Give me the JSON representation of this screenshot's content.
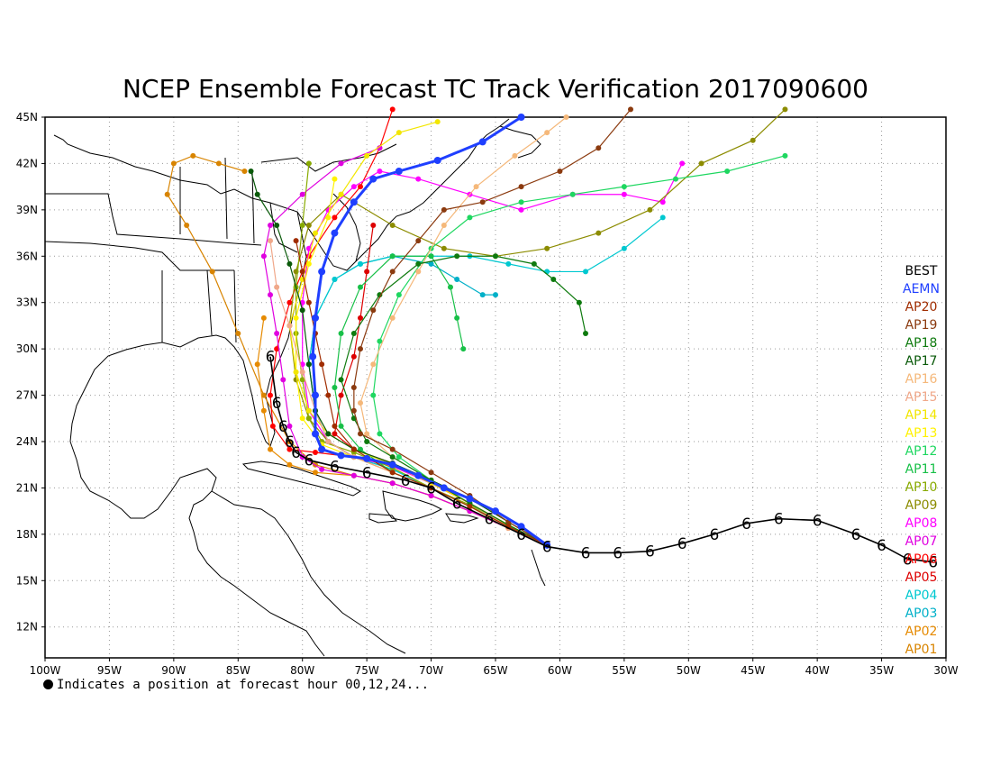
{
  "title": "NCEP Ensemble Forecast TC Track Verification 2017090600",
  "footnote": "Indicates a position at forecast hour 00,12,24...",
  "map": {
    "lon_range": [
      -100,
      -30
    ],
    "lat_range": [
      10,
      45
    ],
    "x_ticks": [
      "100W",
      "95W",
      "90W",
      "85W",
      "80W",
      "75W",
      "70W",
      "65W",
      "60W",
      "55W",
      "50W",
      "45W",
      "40W",
      "35W",
      "30W"
    ],
    "y_ticks": [
      "12N",
      "15N",
      "18N",
      "21N",
      "24N",
      "27N",
      "30N",
      "33N",
      "36N",
      "39N",
      "42N",
      "45N"
    ],
    "grid": true
  },
  "legend": [
    {
      "label": "BEST",
      "color": "#000000"
    },
    {
      "label": "AEMN",
      "color": "#1f3fff"
    },
    {
      "label": "AP20",
      "color": "#a02c00"
    },
    {
      "label": "AP19",
      "color": "#8b3a0f"
    },
    {
      "label": "AP18",
      "color": "#0e7a0e"
    },
    {
      "label": "AP17",
      "color": "#0a5a0a"
    },
    {
      "label": "AP16",
      "color": "#f5b87a"
    },
    {
      "label": "AP15",
      "color": "#f0a88a"
    },
    {
      "label": "AP14",
      "color": "#f2e600"
    },
    {
      "label": "AP13",
      "color": "#fff200"
    },
    {
      "label": "AP12",
      "color": "#1ed760"
    },
    {
      "label": "AP11",
      "color": "#18c048"
    },
    {
      "label": "AP10",
      "color": "#88aa00"
    },
    {
      "label": "AP09",
      "color": "#8c8c00"
    },
    {
      "label": "AP08",
      "color": "#ff00ff"
    },
    {
      "label": "AP07",
      "color": "#e000e0"
    },
    {
      "label": "AP06",
      "color": "#ff0000"
    },
    {
      "label": "AP05",
      "color": "#dd0000"
    },
    {
      "label": "AP04",
      "color": "#00c8d0"
    },
    {
      "label": "AP03",
      "color": "#00b0c8"
    },
    {
      "label": "AP02",
      "color": "#e68a00"
    },
    {
      "label": "AP01",
      "color": "#d88400"
    }
  ],
  "chart_data": {
    "type": "scatter",
    "title": "NCEP Ensemble Forecast TC Track Verification 2017090600",
    "xlim": [
      -100,
      -30
    ],
    "ylim": [
      10,
      45
    ],
    "series": [
      {
        "name": "BEST",
        "color": "#000000",
        "x": [
          -31,
          -33,
          -35,
          -37,
          -40,
          -43,
          -45.5,
          -48,
          -50.5,
          -53,
          -55.5,
          -58,
          -61,
          -63,
          -65.5,
          -68,
          -70,
          -72,
          -75,
          -77.5,
          -79.5,
          -80.5,
          -81,
          -81.5,
          -82,
          -82.5
        ],
        "y": [
          16.2,
          16.4,
          17.3,
          18,
          18.9,
          19,
          18.7,
          18,
          17.4,
          16.9,
          16.8,
          16.8,
          17.2,
          18,
          19,
          20,
          21,
          21.5,
          22,
          22.4,
          22.8,
          23.3,
          24,
          25,
          26.5,
          29.5
        ]
      },
      {
        "name": "AEMN",
        "color": "#1f3fff",
        "x": [
          -61,
          -63,
          -65,
          -67,
          -69,
          -71,
          -73,
          -75,
          -77,
          -78.5,
          -79,
          -79,
          -79.2,
          -79,
          -78.5,
          -77.5,
          -76,
          -74.5,
          -72.5,
          -69.5,
          -66,
          -63
        ],
        "y": [
          17.3,
          18.5,
          19.5,
          20.3,
          21,
          21.8,
          22.5,
          22.9,
          23.1,
          23.5,
          24.5,
          27,
          29.5,
          32,
          35,
          37.5,
          39.5,
          41,
          41.5,
          42.2,
          43.4,
          45
        ]
      },
      {
        "name": "AP20",
        "color": "#a02c00",
        "x": [
          -61,
          -64,
          -67,
          -70,
          -73,
          -76,
          -77.5,
          -78,
          -78.5,
          -79,
          -79.5,
          -80,
          -80.5
        ],
        "y": [
          17.3,
          18.5,
          19.8,
          21,
          22,
          23.5,
          25,
          27,
          29,
          31,
          33,
          35,
          37
        ]
      },
      {
        "name": "AP19",
        "color": "#8b3a0f",
        "x": [
          -61,
          -64,
          -67,
          -70,
          -73,
          -75.5,
          -76,
          -76,
          -75.5,
          -74.5,
          -73,
          -71,
          -69,
          -66,
          -63,
          -60,
          -57,
          -54.5
        ],
        "y": [
          17.3,
          18.8,
          20.5,
          22,
          23.5,
          24.5,
          26,
          27.5,
          30,
          32.5,
          35,
          37,
          39,
          39.5,
          40.5,
          41.5,
          43,
          45.5
        ]
      },
      {
        "name": "AP18",
        "color": "#0e7a0e",
        "x": [
          -61,
          -64,
          -67,
          -70,
          -73,
          -75,
          -76,
          -77,
          -76,
          -74,
          -71,
          -68,
          -65,
          -62,
          -60.5,
          -58.5,
          -58
        ],
        "y": [
          17.3,
          18.6,
          20,
          21.5,
          23,
          24,
          25.5,
          28,
          31,
          33.5,
          35.5,
          36,
          36,
          35.5,
          34.5,
          33,
          31
        ]
      },
      {
        "name": "AP17",
        "color": "#0a5a0a",
        "x": [
          -61,
          -64,
          -67,
          -70,
          -73,
          -76,
          -78,
          -79,
          -79.5,
          -80,
          -81,
          -82,
          -83.5,
          -84
        ],
        "y": [
          17.3,
          18.8,
          20.3,
          21.5,
          22.6,
          23.5,
          24.5,
          26,
          29,
          32.5,
          35.5,
          38,
          40,
          41.5
        ]
      },
      {
        "name": "AP16",
        "color": "#f5b87a",
        "x": [
          -61,
          -64,
          -67,
          -70,
          -73,
          -75,
          -75.5,
          -74.5,
          -73,
          -71,
          -69,
          -66.5,
          -63.5,
          -61,
          -59.5
        ],
        "y": [
          17.3,
          18.5,
          20,
          21.5,
          23,
          24.5,
          26.5,
          29,
          32,
          35,
          38,
          40.5,
          42.5,
          44,
          45
        ]
      },
      {
        "name": "AP15",
        "color": "#f0a88a",
        "x": [
          -61,
          -64,
          -67,
          -70,
          -73,
          -76,
          -78,
          -79,
          -80,
          -81,
          -82,
          -82.5
        ],
        "y": [
          17.3,
          18.4,
          19.8,
          21,
          22,
          23,
          24,
          26,
          28.5,
          31.5,
          34,
          37
        ]
      },
      {
        "name": "AP14",
        "color": "#f2e600",
        "x": [
          -61,
          -64,
          -67,
          -70,
          -73,
          -76,
          -78,
          -79.5,
          -80.5,
          -81,
          -80,
          -79,
          -77,
          -75,
          -72.5,
          -69.5
        ],
        "y": [
          17.3,
          18.6,
          20,
          21.3,
          22.5,
          23.5,
          24.5,
          26,
          28.5,
          31.5,
          34.5,
          37.5,
          40,
          42.5,
          44,
          44.7
        ]
      },
      {
        "name": "AP13",
        "color": "#fff200",
        "x": [
          -61,
          -64,
          -67,
          -70,
          -73,
          -76,
          -78.5,
          -80,
          -80.5,
          -80.5,
          -79.5,
          -78,
          -77.5
        ],
        "y": [
          17.3,
          18.4,
          19.8,
          21,
          22,
          23,
          23.8,
          25.5,
          28.5,
          32,
          35.5,
          38.5,
          41
        ]
      },
      {
        "name": "AP12",
        "color": "#1ed760",
        "x": [
          -61,
          -64,
          -67,
          -70,
          -72.5,
          -74,
          -74.5,
          -74,
          -72.5,
          -70,
          -67,
          -63,
          -59,
          -55,
          -51,
          -47,
          -42.5
        ],
        "y": [
          17.3,
          18.6,
          20,
          21.5,
          23,
          24.5,
          27,
          30.5,
          33.5,
          36.5,
          38.5,
          39.5,
          40,
          40.5,
          41,
          41.5,
          42.5
        ]
      },
      {
        "name": "AP11",
        "color": "#18c048",
        "x": [
          -61,
          -64,
          -67,
          -70,
          -73,
          -75.5,
          -77,
          -77.5,
          -77,
          -75.5,
          -73,
          -70,
          -68.5,
          -68,
          -67.5
        ],
        "y": [
          17.3,
          18.5,
          19.8,
          21,
          22,
          23.5,
          25,
          27.5,
          31,
          34,
          36,
          36,
          34,
          32,
          30
        ]
      },
      {
        "name": "AP10",
        "color": "#88aa00",
        "x": [
          -61,
          -64,
          -67,
          -70,
          -73,
          -76,
          -78.5,
          -79.5,
          -80,
          -80.5,
          -80.5,
          -80,
          -79.5
        ],
        "y": [
          17.3,
          18.6,
          19.9,
          21,
          22.3,
          23.3,
          24,
          25.5,
          28,
          31,
          34,
          38,
          42
        ]
      },
      {
        "name": "AP09",
        "color": "#8c8c00",
        "x": [
          -61,
          -64,
          -67,
          -70,
          -73,
          -76,
          -78,
          -79.5,
          -80.5,
          -81,
          -80.5,
          -79.5,
          -77,
          -73,
          -69,
          -65,
          -61,
          -57,
          -53,
          -49,
          -45,
          -42.5
        ],
        "y": [
          17.3,
          18.5,
          19.8,
          21,
          22,
          23,
          24,
          25.5,
          28,
          31.5,
          35,
          38,
          40,
          38,
          36.5,
          36,
          36.5,
          37.5,
          39,
          42,
          43.5,
          45.5
        ]
      },
      {
        "name": "AP08",
        "color": "#ff00ff",
        "x": [
          -61,
          -64,
          -67,
          -70,
          -73,
          -76,
          -78,
          -79.5,
          -80,
          -80,
          -79.5,
          -78,
          -76,
          -74,
          -71,
          -67,
          -63,
          -59,
          -55,
          -52,
          -50.5
        ],
        "y": [
          17.3,
          18.5,
          20,
          21.3,
          22.4,
          23,
          24,
          26,
          29,
          33,
          36.5,
          39,
          40.5,
          41.5,
          41,
          40,
          39,
          40,
          40,
          39.5,
          42
        ]
      },
      {
        "name": "AP07",
        "color": "#e000e0",
        "x": [
          -61,
          -64,
          -67,
          -70,
          -73,
          -76,
          -78.5,
          -80,
          -81,
          -81.5,
          -82,
          -82.5,
          -83,
          -82.5,
          -80,
          -77,
          -74
        ],
        "y": [
          17.3,
          18.4,
          19.5,
          20.5,
          21.3,
          21.8,
          22.2,
          23,
          25,
          28,
          31,
          33.5,
          36,
          38,
          40,
          42,
          43
        ]
      },
      {
        "name": "AP06",
        "color": "#ff0000",
        "x": [
          -61,
          -64,
          -67,
          -70,
          -73,
          -76,
          -79,
          -81,
          -82.3,
          -82.5,
          -82,
          -81,
          -79.5,
          -77.5,
          -75.5,
          -74,
          -73
        ],
        "y": [
          17.3,
          18.6,
          20,
          21.3,
          22.4,
          23,
          23.3,
          23.5,
          25,
          27,
          30,
          33,
          36,
          38.5,
          40.5,
          43,
          45.5
        ]
      },
      {
        "name": "AP05",
        "color": "#dd0000",
        "x": [
          -61,
          -64,
          -67,
          -70,
          -73,
          -76,
          -77.5,
          -77,
          -76,
          -75.5,
          -75,
          -74.5
        ],
        "y": [
          17.3,
          18.6,
          20,
          21.4,
          22.6,
          23.5,
          24.5,
          27,
          29.5,
          32,
          35,
          38
        ]
      },
      {
        "name": "AP04",
        "color": "#00c8d0",
        "x": [
          -61,
          -64,
          -67,
          -70,
          -73,
          -76,
          -78,
          -79,
          -79.5,
          -79,
          -77.5,
          -75.5,
          -73,
          -70,
          -67,
          -64,
          -61,
          -58,
          -55,
          -52
        ],
        "y": [
          17.3,
          18.5,
          19.8,
          21,
          22.2,
          23,
          24,
          26,
          29,
          32,
          34.5,
          35.5,
          36,
          36,
          36,
          35.5,
          35,
          35,
          36.5,
          38.5
        ]
      },
      {
        "name": "AP03",
        "color": "#00b0c8",
        "x": [
          -61,
          -64,
          -67,
          -70,
          -73,
          -76,
          -78,
          -79,
          -79.5,
          -79,
          -77.5,
          -75.5,
          -73,
          -70,
          -68,
          -66,
          -65
        ],
        "y": [
          17.3,
          18.5,
          19.8,
          21,
          22.2,
          23,
          24,
          26,
          29,
          32,
          34.5,
          35.5,
          36,
          35.5,
          34.5,
          33.5,
          33.5
        ]
      },
      {
        "name": "AP02",
        "color": "#e68a00",
        "x": [
          -61,
          -64,
          -67,
          -70,
          -73,
          -76,
          -79,
          -81,
          -82.5,
          -83,
          -83.5,
          -83
        ],
        "y": [
          17.3,
          18.4,
          19.5,
          20.5,
          21.3,
          21.8,
          22,
          22.5,
          23.5,
          26,
          29,
          32
        ]
      },
      {
        "name": "AP01",
        "color": "#d88400",
        "x": [
          -61,
          -64,
          -67,
          -70,
          -73,
          -76,
          -79,
          -81,
          -83,
          -85,
          -87,
          -89,
          -90.5,
          -90,
          -88.5,
          -86.5,
          -84.5
        ],
        "y": [
          17.3,
          18.4,
          19.5,
          20.5,
          21.3,
          21.8,
          22.5,
          24,
          27,
          31,
          35,
          38,
          40,
          42,
          42.5,
          42,
          41.5
        ]
      }
    ]
  }
}
